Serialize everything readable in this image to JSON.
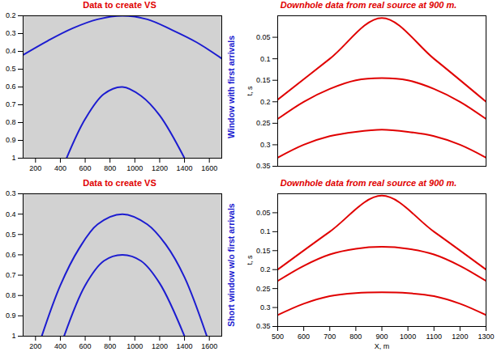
{
  "chart_data": [
    {
      "type": "line",
      "title": "Data to create VS",
      "side_label": "Window with first arrivals",
      "xlim": [
        100,
        1700
      ],
      "xticks": [
        200,
        400,
        600,
        800,
        1000,
        1200,
        1400,
        1600
      ],
      "ylim": [
        0.2,
        1
      ],
      "yticks": [
        0.2,
        0.3,
        0.4,
        0.5,
        0.6,
        0.7,
        0.8,
        0.9,
        1
      ],
      "series": [
        {
          "color": "#1c1cd0",
          "x": [
            100,
            300,
            500,
            700,
            900,
            1100,
            1300,
            1500,
            1700
          ],
          "values": [
            0.42,
            0.34,
            0.27,
            0.22,
            0.2,
            0.22,
            0.28,
            0.35,
            0.44
          ]
        },
        {
          "color": "#1c1cd0",
          "x": [
            450,
            600,
            750,
            900,
            1050,
            1200,
            1400
          ],
          "values": [
            1,
            0.78,
            0.64,
            0.6,
            0.65,
            0.76,
            1
          ]
        }
      ]
    },
    {
      "type": "line",
      "title": "Downhole data from real source at 900 m.",
      "y_label": "t, s",
      "tick_labels": "y",
      "xlim": [
        500,
        1300
      ],
      "xticks": [
        500,
        600,
        700,
        800,
        900,
        1000,
        1100,
        1200,
        1300
      ],
      "ylim": [
        0,
        0.35
      ],
      "yticks": [
        0.05,
        0.1,
        0.15,
        0.2,
        0.25,
        0.3,
        0.35
      ],
      "series": [
        {
          "color": "#e00000",
          "x": [
            500,
            700,
            900,
            1100,
            1300
          ],
          "values": [
            0.195,
            0.1,
            0.005,
            0.1,
            0.2
          ]
        },
        {
          "color": "#e00000",
          "x": [
            500,
            600,
            700,
            800,
            900,
            1000,
            1100,
            1200,
            1300
          ],
          "values": [
            0.24,
            0.2,
            0.17,
            0.15,
            0.145,
            0.15,
            0.17,
            0.2,
            0.24
          ]
        },
        {
          "color": "#e00000",
          "x": [
            500,
            600,
            700,
            800,
            900,
            1000,
            1100,
            1200,
            1300
          ],
          "values": [
            0.33,
            0.3,
            0.28,
            0.27,
            0.265,
            0.27,
            0.28,
            0.3,
            0.33
          ]
        }
      ]
    },
    {
      "type": "line",
      "title": "Data to create VS",
      "side_label": "Short window w/o first arrivals",
      "xlim": [
        100,
        1700
      ],
      "xticks": [
        200,
        400,
        600,
        800,
        1000,
        1200,
        1400,
        1600
      ],
      "ylim": [
        0.3,
        1
      ],
      "yticks": [
        0.3,
        0.4,
        0.5,
        0.6,
        0.7,
        0.8,
        0.9,
        1
      ],
      "series": [
        {
          "color": "#1c1cd0",
          "x": [
            250,
            400,
            550,
            700,
            900,
            1100,
            1250,
            1400,
            1580
          ],
          "values": [
            1,
            0.75,
            0.57,
            0.45,
            0.4,
            0.45,
            0.55,
            0.71,
            1
          ]
        },
        {
          "color": "#1c1cd0",
          "x": [
            430,
            600,
            750,
            900,
            1050,
            1200,
            1400
          ],
          "values": [
            1,
            0.75,
            0.63,
            0.6,
            0.63,
            0.74,
            1
          ]
        }
      ]
    },
    {
      "type": "line",
      "title": "Downhole data from real source at 900 m.",
      "y_label": "t, s",
      "x_label": "X, m",
      "xlim": [
        500,
        1300
      ],
      "xticks": [
        500,
        600,
        700,
        800,
        900,
        1000,
        1100,
        1200,
        1300
      ],
      "ylim": [
        0,
        0.35
      ],
      "yticks": [
        0.05,
        0.1,
        0.15,
        0.2,
        0.25,
        0.3,
        0.35
      ],
      "series": [
        {
          "color": "#e00000",
          "x": [
            500,
            700,
            900,
            1100,
            1300
          ],
          "values": [
            0.2,
            0.1,
            0.005,
            0.1,
            0.2
          ]
        },
        {
          "color": "#e00000",
          "x": [
            500,
            600,
            700,
            800,
            900,
            1000,
            1100,
            1200,
            1300
          ],
          "values": [
            0.23,
            0.19,
            0.16,
            0.145,
            0.14,
            0.145,
            0.16,
            0.19,
            0.23
          ]
        },
        {
          "color": "#e00000",
          "x": [
            500,
            600,
            700,
            800,
            900,
            1000,
            1100,
            1200,
            1300
          ],
          "values": [
            0.32,
            0.29,
            0.27,
            0.262,
            0.26,
            0.262,
            0.27,
            0.29,
            0.32
          ]
        }
      ]
    }
  ]
}
